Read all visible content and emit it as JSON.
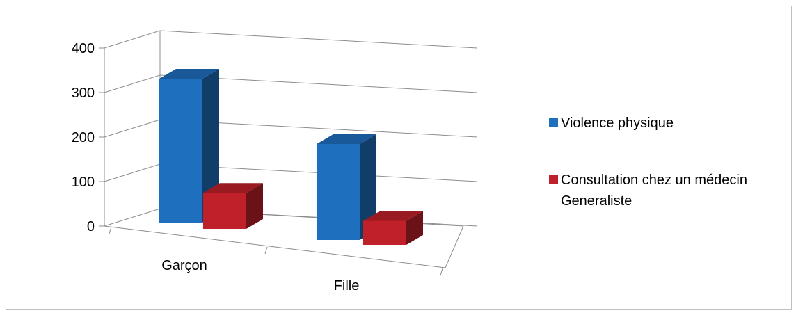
{
  "chart_data": {
    "type": "bar",
    "variant": "3d-clustered-column",
    "categories": [
      "Garçon",
      "Fille"
    ],
    "series": [
      {
        "name": "Violence physique",
        "values": [
          300,
          200
        ],
        "color": "#1f6fbf"
      },
      {
        "name": "Consultation chez un médecin Generaliste",
        "name_lines": [
          "Consultation chez un médecin",
          "Generaliste"
        ],
        "values": [
          75,
          50
        ],
        "color": "#c0202a"
      }
    ],
    "yticks": [
      "0",
      "100",
      "200",
      "300",
      "400"
    ],
    "ylim": [
      0,
      400
    ],
    "grid": true,
    "legend": "right"
  }
}
